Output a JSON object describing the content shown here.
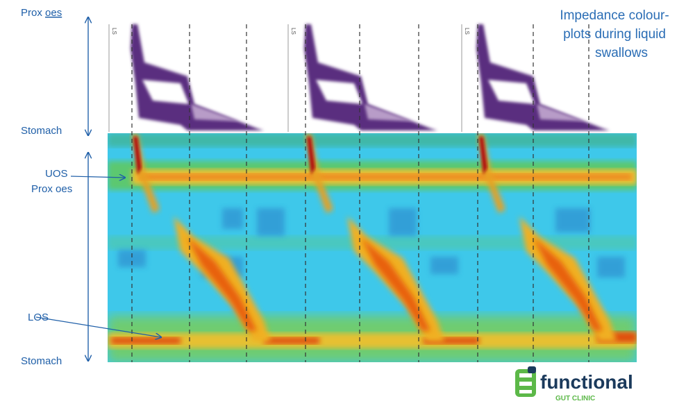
{
  "left_labels": {
    "top_prefix": "Prox",
    "top_underlined": "oes",
    "stomach_top": "Stomach",
    "uos": "UOS",
    "prox_oes": "Prox oes",
    "los": "LOS",
    "stomach_bottom": "Stomach"
  },
  "swallow_markers": [
    "LS",
    "LS",
    "LS"
  ],
  "title_lines": [
    "Impedance colour-",
    "plots during liquid",
    "swallows"
  ],
  "logo": {
    "name": "functional",
    "tagline": "GUT CLINIC"
  }
}
